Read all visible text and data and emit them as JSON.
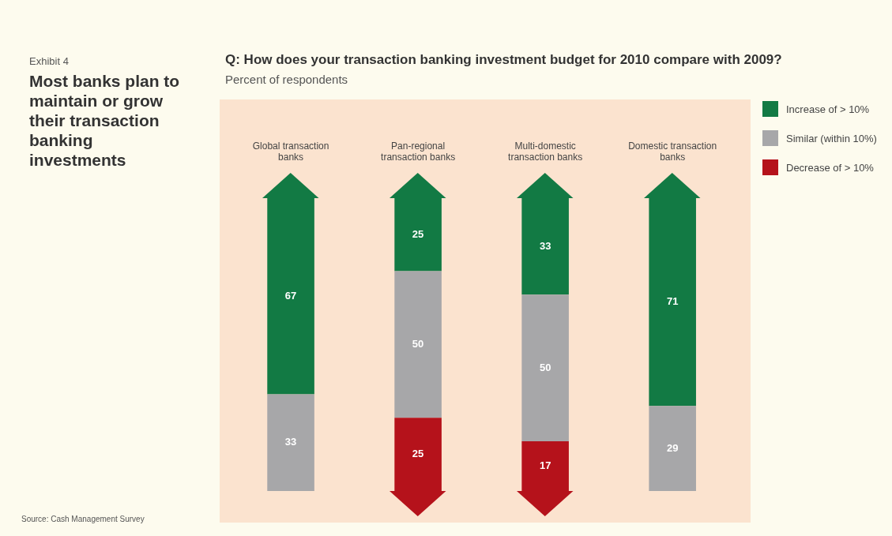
{
  "chart_data": {
    "type": "bar",
    "title": "Most banks plan to maintain or grow their transaction banking investments",
    "subtitle": "Q: How does your transaction banking investment budget for 2010 compare with 2009?",
    "ylabel": "Percent of respondents",
    "annotations": [
      "Exhibit 4",
      "Source: Cash Management Survey"
    ],
    "categories": [
      "Global transaction banks",
      "Pan-regional transaction banks",
      "Multi-domestic transaction banks",
      "Domestic transaction banks"
    ],
    "stacked": true,
    "tick_labels": "x",
    "grid": false,
    "legend": "right",
    "data_labels": true,
    "series": [
      {
        "name": "Decrease of > 10%",
        "color": "#b5121b",
        "values": [
          null,
          25,
          17,
          null
        ]
      },
      {
        "name": "Similar (within 10%)",
        "color": "#a7a7a9",
        "values": [
          33,
          50,
          50,
          29
        ]
      },
      {
        "name": "Increase of > 10%",
        "color": "#127a44",
        "values": [
          67,
          25,
          33,
          71
        ]
      }
    ]
  }
}
